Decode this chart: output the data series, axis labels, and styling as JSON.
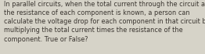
{
  "text": "In parallel circuits, when the total current through the circuit and\nthe resistance of each component is known, a person can\ncalculate the voltage drop for each component in that circuit by\nmultiplying the total current times the resistance of the\ncomponent. True or False?",
  "background_color": "#d6d3c8",
  "text_color": "#3a3530",
  "font_size": 5.85,
  "fig_width": 2.62,
  "fig_height": 0.69,
  "dpi": 100
}
